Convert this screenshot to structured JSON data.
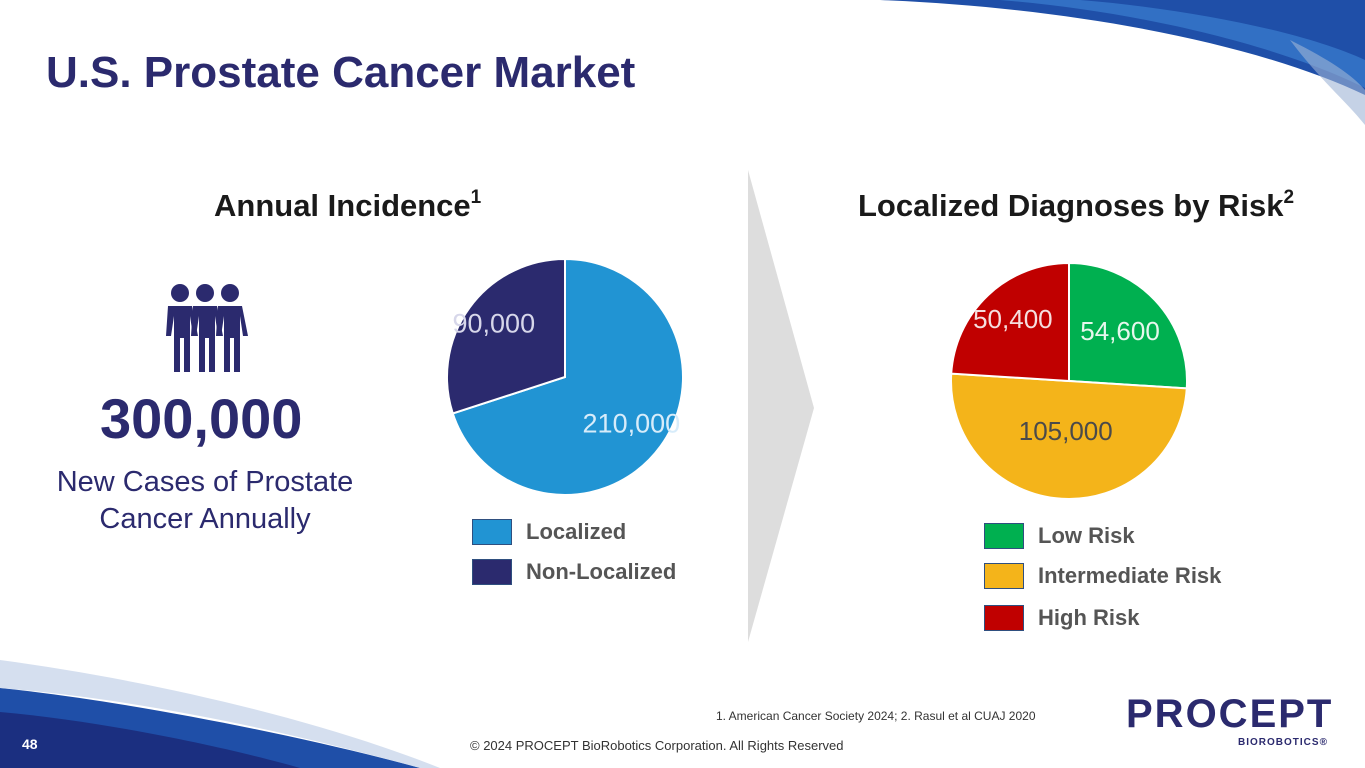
{
  "slide": {
    "title": "U.S. Prostate Cancer Market",
    "page_number": "48",
    "footnote": "1. American Cancer Society 2024; 2. Rasul et al CUAJ 2020",
    "copyright": "© 2024 PROCEPT BioRobotics Corporation. All Rights Reserved",
    "logo_word": "PROCEPT",
    "logo_sub": "BioRobotics",
    "logo_reg": "®"
  },
  "incidence": {
    "title": "Annual Incidence",
    "title_sup": "1",
    "big_number": "300,000",
    "description": "New Cases of Prostate Cancer Annually",
    "people_icon": "people-group-icon"
  },
  "risk": {
    "title": "Localized Diagnoses by Risk",
    "title_sup": "2"
  },
  "colors": {
    "brand": "#2b2a6e",
    "localized": "#2194d3",
    "non_localized": "#2b2a6e",
    "low": "#00b050",
    "intermediate": "#f4b41a",
    "high": "#c00000"
  },
  "chart_data": [
    {
      "type": "pie",
      "title": "Annual Incidence",
      "categories": [
        "Localized",
        "Non-Localized"
      ],
      "values": [
        210000,
        90000
      ],
      "labels": [
        "210,000",
        "90,000"
      ],
      "colors": [
        "#2194d3",
        "#2b2a6e"
      ]
    },
    {
      "type": "pie",
      "title": "Localized Diagnoses by Risk",
      "categories": [
        "Low Risk",
        "Intermediate Risk",
        "High Risk"
      ],
      "values": [
        54600,
        105000,
        50400
      ],
      "labels": [
        "54,600",
        "105,000",
        "50,400"
      ],
      "colors": [
        "#00b050",
        "#f4b41a",
        "#c00000"
      ]
    }
  ]
}
